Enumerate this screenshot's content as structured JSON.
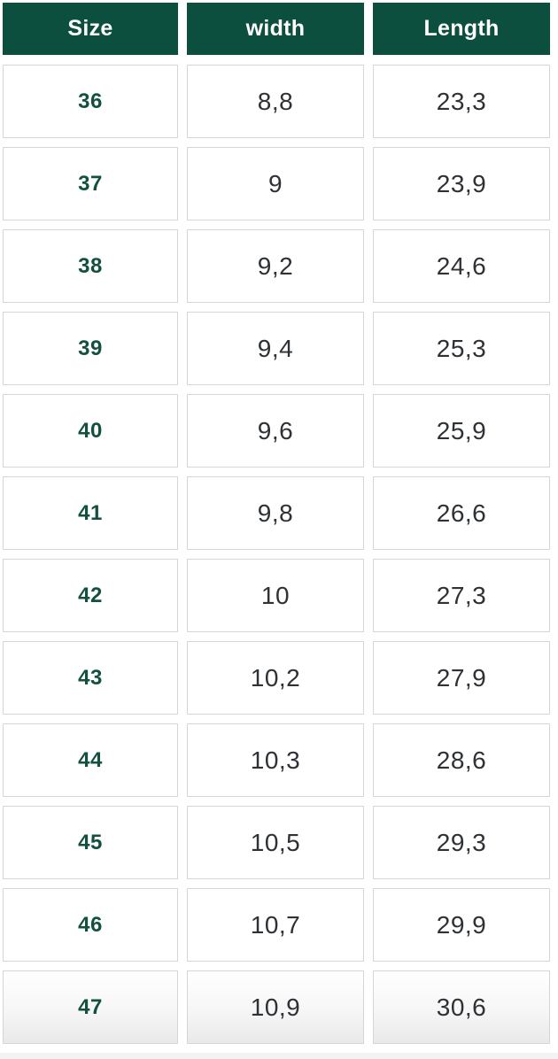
{
  "colors": {
    "header_bg": "#0d4f3e",
    "header_text": "#ffffff",
    "size_text": "#12503f",
    "value_text": "#2e3135",
    "cell_border": "#d6d6d6",
    "fade": "#e9e9e9",
    "strip": "#f3f3f3"
  },
  "chart_data": {
    "type": "table",
    "title": "",
    "columns": [
      "Size",
      "width",
      "Length"
    ],
    "rows": [
      [
        "36",
        "8,8",
        "23,3"
      ],
      [
        "37",
        "9",
        "23,9"
      ],
      [
        "38",
        "9,2",
        "24,6"
      ],
      [
        "39",
        "9,4",
        "25,3"
      ],
      [
        "40",
        "9,6",
        "25,9"
      ],
      [
        "41",
        "9,8",
        "26,6"
      ],
      [
        "42",
        "10",
        "27,3"
      ],
      [
        "43",
        "10,2",
        "27,9"
      ],
      [
        "44",
        "10,3",
        "28,6"
      ],
      [
        "45",
        "10,5",
        "29,3"
      ],
      [
        "46",
        "10,7",
        "29,9"
      ],
      [
        "47",
        "10,9",
        "30,6"
      ]
    ]
  }
}
